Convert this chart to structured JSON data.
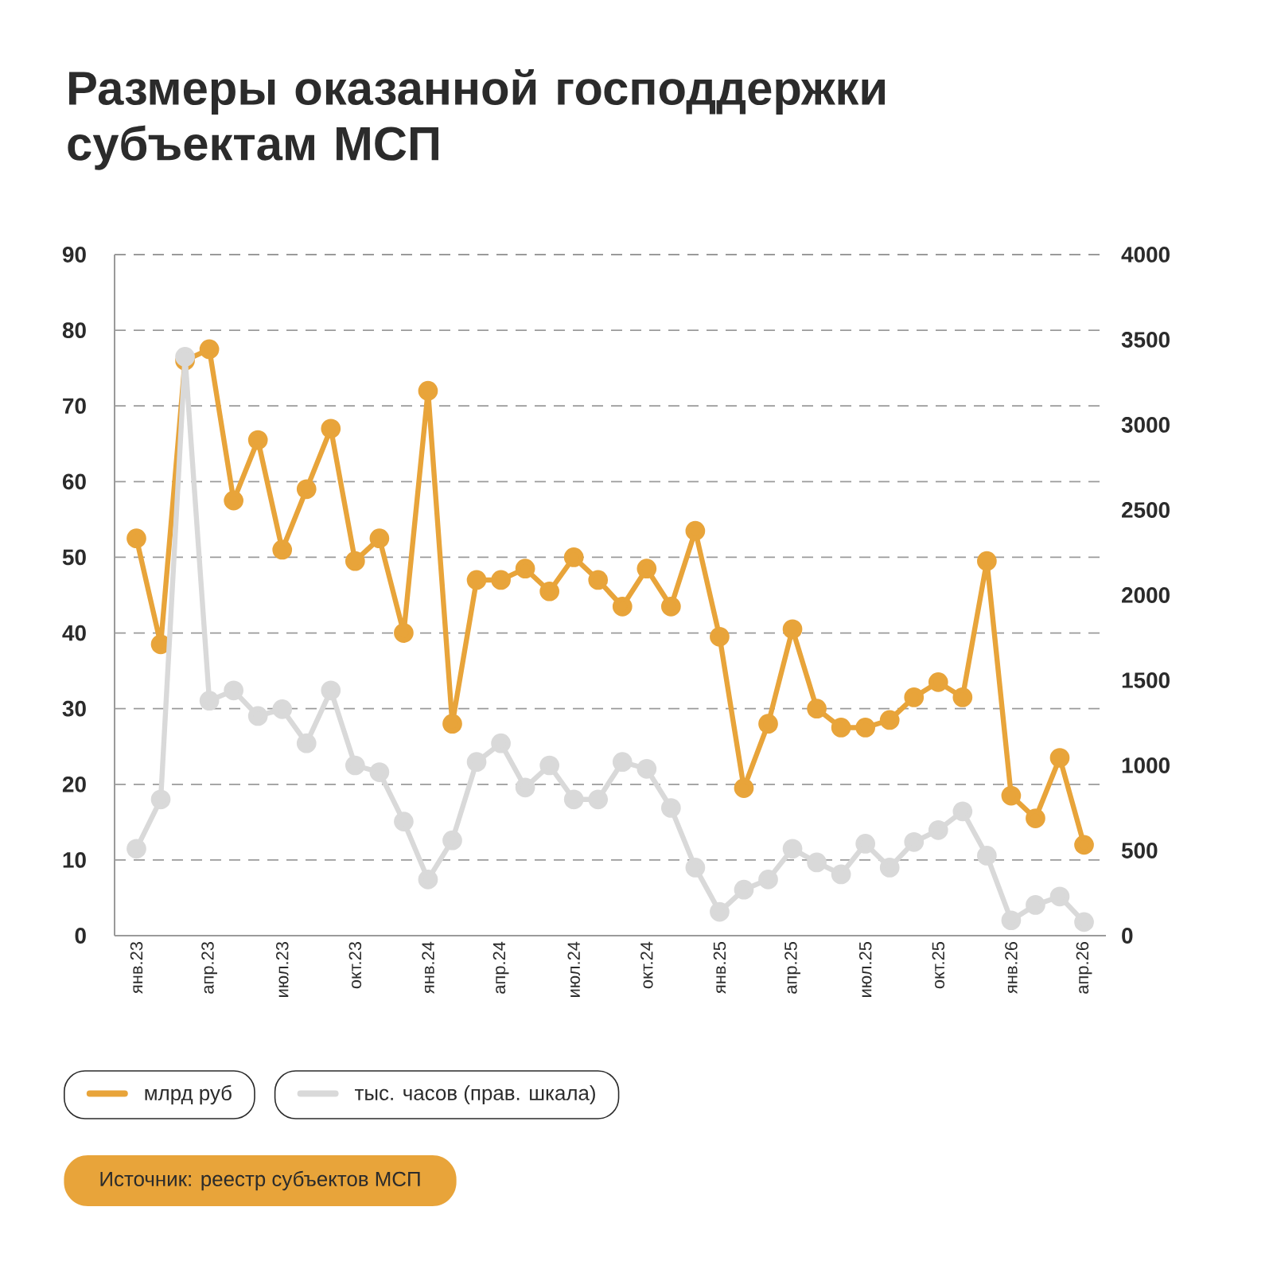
{
  "chart_data": {
    "type": "line",
    "title": "Размеры оказанной господдержки субъектам МСП",
    "categories": [
      "янв.23",
      null,
      null,
      "апр.23",
      null,
      null,
      "июл.23",
      null,
      null,
      "окт.23",
      null,
      null,
      "янв.24",
      null,
      null,
      "апр.24",
      null,
      null,
      "июл.24",
      null,
      null,
      "окт.24",
      null,
      null,
      "янв.25",
      null,
      null,
      "апр.25",
      null,
      null,
      "июл.25",
      null,
      null,
      "окт.25",
      null,
      null,
      "янв.26",
      null,
      null,
      "апр.26"
    ],
    "series": [
      {
        "name": "млрд руб",
        "color": "#e8a43a",
        "values": [
          52.5,
          38.5,
          76,
          77.5,
          57.5,
          65.5,
          51,
          59,
          67,
          49.5,
          52.5,
          40,
          72,
          28,
          47,
          47,
          48.5,
          45.5,
          50,
          47,
          43.5,
          48.5,
          43.5,
          53.5,
          39.5,
          19.5,
          28,
          40.5,
          30,
          27.5,
          27.5,
          28.5,
          31.5,
          33.5,
          31.5,
          49.5,
          18.5,
          15.5,
          23.5,
          12
        ]
      },
      {
        "name": "тыс. часов (прав. шкала)",
        "color": "#d9d9d9",
        "axis": "y2",
        "values": [
          510,
          800,
          3400,
          1380,
          1440,
          1290,
          1330,
          1130,
          1440,
          1000,
          960,
          670,
          330,
          560,
          1020,
          1130,
          870,
          1000,
          800,
          800,
          1020,
          980,
          750,
          400,
          140,
          270,
          330,
          510,
          430,
          360,
          540,
          400,
          550,
          620,
          730,
          470,
          90,
          180,
          230,
          80
        ]
      }
    ],
    "ylim": [
      0,
      90
    ],
    "yticks": [
      0,
      10,
      20,
      30,
      40,
      50,
      60,
      70,
      80,
      90
    ],
    "y2lim": [
      0,
      4000
    ],
    "y2ticks": [
      0,
      500,
      1000,
      1500,
      2000,
      2500,
      3000,
      3500,
      4000
    ],
    "grid": "y",
    "legend": "bottom",
    "marker": "circle",
    "line_style": "solid",
    "annotations": [
      "Источник: реестр субъектов МСП"
    ]
  }
}
